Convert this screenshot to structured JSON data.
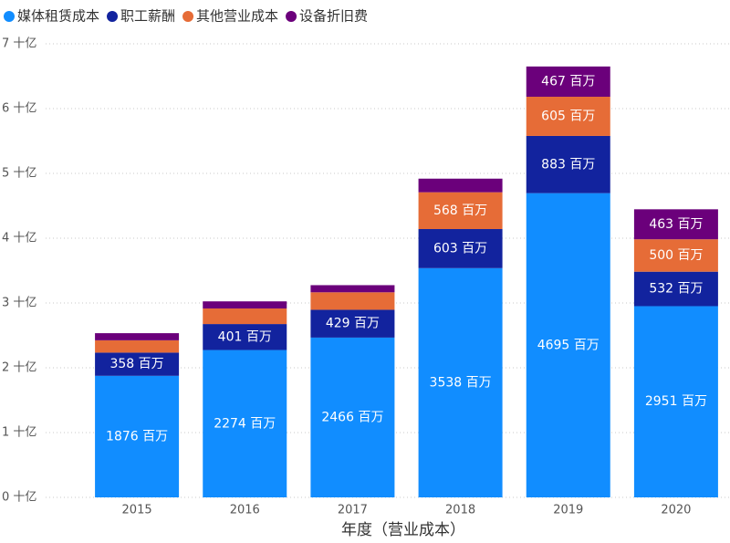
{
  "chart_data": {
    "type": "stacked_bar",
    "x_label": "年度（营业成本）",
    "categories": [
      "2015",
      "2016",
      "2017",
      "2018",
      "2019",
      "2020"
    ],
    "series": [
      {
        "name": "媒体租赁成本",
        "color": "#118DFF",
        "values": [
          1.876,
          2.274,
          2.466,
          3.538,
          4.695,
          2.951
        ],
        "value_labels": [
          "1876 百万",
          "2274 百万",
          "2466 百万",
          "3538 百万",
          "4695 百万",
          "2951 百万"
        ]
      },
      {
        "name": "职工薪酬",
        "color": "#12239E",
        "values": [
          0.358,
          0.401,
          0.429,
          0.603,
          0.883,
          0.532
        ],
        "value_labels": [
          "358 百万",
          "401 百万",
          "429 百万",
          "603 百万",
          "883 百万",
          "532 百万"
        ]
      },
      {
        "name": "其他营业成本",
        "color": "#E66C37",
        "values": [
          0.19,
          0.24,
          0.27,
          0.568,
          0.605,
          0.5
        ],
        "value_labels": [
          null,
          null,
          null,
          "568 百万",
          "605 百万",
          "500 百万"
        ]
      },
      {
        "name": "设备折旧费",
        "color": "#6B007B",
        "values": [
          0.11,
          0.11,
          0.11,
          0.21,
          0.467,
          0.463
        ],
        "value_labels": [
          null,
          null,
          null,
          null,
          "467 百万",
          "463 百万"
        ]
      }
    ],
    "ylim": [
      0,
      7
    ],
    "yticks": [
      {
        "value": 0,
        "label": "0 十亿"
      },
      {
        "value": 1,
        "label": "1 十亿"
      },
      {
        "value": 2,
        "label": "2 十亿"
      },
      {
        "value": 3,
        "label": "3 十亿"
      },
      {
        "value": 4,
        "label": "4 十亿"
      },
      {
        "value": 5,
        "label": "5 十亿"
      },
      {
        "value": 6,
        "label": "6 十亿"
      },
      {
        "value": 7,
        "label": "7 十亿"
      }
    ],
    "grid": true,
    "legend": "top-left"
  }
}
